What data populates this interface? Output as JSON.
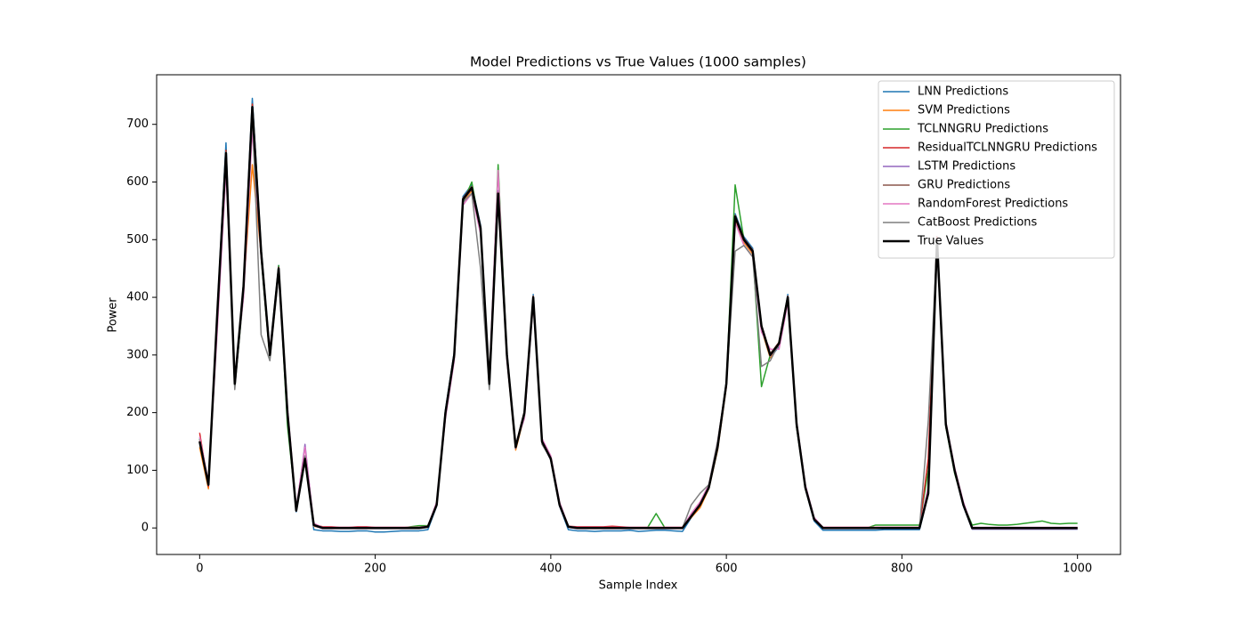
{
  "chart_data": {
    "type": "line",
    "title": "Model Predictions vs True Values (1000 samples)",
    "x_label": "Sample Index",
    "y_label": "Power",
    "xlim": [
      -49,
      1049
    ],
    "ylim": [
      -46,
      786
    ],
    "xticks": [
      0,
      200,
      400,
      600,
      800,
      1000
    ],
    "yticks": [
      0,
      100,
      200,
      300,
      400,
      500,
      600,
      700
    ],
    "legend": "upper right",
    "x": [
      0,
      10,
      20,
      30,
      40,
      50,
      60,
      70,
      80,
      90,
      100,
      110,
      120,
      130,
      140,
      150,
      160,
      170,
      180,
      190,
      200,
      210,
      220,
      230,
      240,
      250,
      260,
      270,
      280,
      290,
      300,
      310,
      320,
      330,
      340,
      350,
      360,
      370,
      380,
      390,
      400,
      410,
      420,
      430,
      440,
      450,
      460,
      470,
      480,
      490,
      500,
      510,
      520,
      530,
      540,
      550,
      560,
      570,
      580,
      590,
      600,
      610,
      620,
      630,
      640,
      650,
      660,
      670,
      680,
      690,
      700,
      710,
      720,
      730,
      740,
      750,
      760,
      770,
      780,
      790,
      800,
      810,
      820,
      830,
      840,
      850,
      860,
      870,
      880,
      890,
      900,
      910,
      920,
      930,
      940,
      950,
      960,
      970,
      980,
      990,
      1000
    ],
    "series": [
      {
        "name": "LNN Predictions",
        "color": "#1f77b4",
        "values": [
          155,
          72,
          375,
          668,
          245,
          425,
          745,
          485,
          305,
          455,
          195,
          28,
          125,
          -3,
          -5,
          -5,
          -6,
          -6,
          -5,
          -5,
          -7,
          -7,
          -6,
          -5,
          -5,
          -5,
          -3,
          38,
          205,
          305,
          575,
          595,
          525,
          245,
          585,
          305,
          138,
          198,
          405,
          148,
          118,
          38,
          -3,
          -5,
          -5,
          -6,
          -5,
          -5,
          -5,
          -4,
          -6,
          -5,
          -4,
          -4,
          -5,
          -6,
          18,
          38,
          68,
          138,
          255,
          545,
          505,
          485,
          345,
          295,
          315,
          405,
          178,
          68,
          12,
          -4,
          -4,
          -4,
          -4,
          -4,
          -4,
          -4,
          -3,
          -3,
          -3,
          -3,
          -3,
          58,
          505,
          178,
          98,
          38,
          -2,
          -2,
          -2,
          -2,
          -2,
          -2,
          -2,
          -2,
          -2,
          -2,
          -2,
          -2,
          -2
        ]
      },
      {
        "name": "SVM Predictions",
        "color": "#ff7f0e",
        "values": [
          140,
          68,
          365,
          640,
          255,
          415,
          630,
          475,
          295,
          445,
          205,
          32,
          118,
          3,
          0,
          0,
          0,
          0,
          0,
          0,
          0,
          0,
          0,
          0,
          0,
          0,
          2,
          42,
          195,
          295,
          565,
          585,
          515,
          250,
          575,
          295,
          135,
          195,
          395,
          150,
          118,
          40,
          2,
          0,
          0,
          0,
          0,
          0,
          0,
          0,
          0,
          0,
          0,
          0,
          0,
          0,
          18,
          35,
          68,
          135,
          245,
          535,
          495,
          475,
          345,
          295,
          318,
          395,
          182,
          68,
          14,
          0,
          0,
          0,
          0,
          0,
          0,
          0,
          0,
          0,
          0,
          0,
          0,
          58,
          495,
          178,
          100,
          40,
          0,
          0,
          0,
          0,
          0,
          0,
          0,
          0,
          0,
          0,
          0,
          0,
          0
        ]
      },
      {
        "name": "TCLNNGRU Predictions",
        "color": "#2ca02c",
        "values": [
          155,
          78,
          372,
          655,
          245,
          405,
          735,
          470,
          295,
          455,
          178,
          35,
          115,
          8,
          0,
          0,
          0,
          0,
          0,
          0,
          0,
          0,
          0,
          0,
          2,
          4,
          4,
          42,
          195,
          295,
          565,
          600,
          515,
          245,
          630,
          295,
          140,
          195,
          395,
          150,
          118,
          42,
          3,
          0,
          0,
          0,
          0,
          0,
          0,
          0,
          0,
          0,
          25,
          0,
          0,
          0,
          22,
          42,
          70,
          142,
          250,
          595,
          500,
          480,
          245,
          300,
          320,
          400,
          175,
          70,
          15,
          0,
          0,
          0,
          0,
          0,
          0,
          5,
          5,
          5,
          5,
          5,
          5,
          100,
          495,
          175,
          95,
          42,
          5,
          8,
          6,
          5,
          5,
          6,
          8,
          10,
          12,
          8,
          7,
          8,
          8
        ]
      },
      {
        "name": "ResidualTCLNNGRU Predictions",
        "color": "#d62728",
        "values": [
          165,
          72,
          372,
          655,
          252,
          422,
          735,
          482,
          302,
          452,
          202,
          32,
          122,
          6,
          2,
          2,
          1,
          1,
          2,
          2,
          1,
          1,
          1,
          1,
          1,
          1,
          3,
          40,
          202,
          302,
          572,
          592,
          522,
          252,
          582,
          302,
          142,
          202,
          402,
          152,
          122,
          42,
          3,
          2,
          2,
          2,
          2,
          3,
          2,
          1,
          1,
          1,
          1,
          1,
          1,
          1,
          20,
          42,
          72,
          145,
          252,
          542,
          502,
          482,
          352,
          302,
          322,
          402,
          182,
          72,
          16,
          1,
          1,
          1,
          1,
          1,
          1,
          1,
          1,
          1,
          1,
          1,
          1,
          120,
          505,
          182,
          102,
          42,
          0,
          0,
          0,
          0,
          0,
          0,
          0,
          0,
          0,
          0,
          0,
          0,
          0
        ]
      },
      {
        "name": "LSTM Predictions",
        "color": "#9467bd",
        "values": [
          148,
          74,
          368,
          648,
          248,
          418,
          725,
          478,
          298,
          448,
          198,
          29,
          145,
          4,
          -1,
          -1,
          -1,
          -1,
          -1,
          -1,
          -1,
          -1,
          -1,
          -1,
          -1,
          -1,
          1,
          38,
          198,
          298,
          568,
          588,
          518,
          248,
          578,
          298,
          138,
          198,
          398,
          148,
          118,
          38,
          1,
          -1,
          -1,
          -1,
          -1,
          -1,
          -1,
          -1,
          -1,
          -1,
          -1,
          -1,
          -1,
          -1,
          19,
          39,
          69,
          139,
          248,
          538,
          498,
          478,
          348,
          298,
          318,
          398,
          178,
          69,
          14,
          -1,
          -1,
          -1,
          -1,
          -1,
          -1,
          -1,
          -1,
          -1,
          -1,
          -1,
          -1,
          60,
          498,
          178,
          98,
          39,
          -2,
          -2,
          -2,
          -2,
          -2,
          -2,
          -2,
          -2,
          -2,
          -2,
          -2,
          -2,
          -2
        ]
      },
      {
        "name": "GRU Predictions",
        "color": "#8c564b",
        "values": [
          152,
          76,
          372,
          652,
          252,
          422,
          728,
          482,
          302,
          452,
          202,
          31,
          122,
          5,
          0,
          0,
          0,
          0,
          0,
          0,
          0,
          0,
          0,
          0,
          0,
          0,
          2,
          41,
          202,
          302,
          572,
          592,
          522,
          252,
          582,
          302,
          142,
          202,
          402,
          152,
          122,
          41,
          2,
          0,
          0,
          0,
          0,
          0,
          0,
          0,
          0,
          0,
          0,
          0,
          0,
          0,
          21,
          41,
          71,
          141,
          252,
          542,
          502,
          482,
          352,
          302,
          322,
          402,
          182,
          71,
          16,
          0,
          0,
          0,
          0,
          0,
          0,
          0,
          0,
          0,
          0,
          0,
          0,
          61,
          502,
          182,
          102,
          41,
          -1,
          -1,
          -1,
          -1,
          -1,
          -1,
          -1,
          -1,
          -1,
          -1,
          -1,
          -1,
          -1
        ]
      },
      {
        "name": "RandomForest Predictions",
        "color": "#e377c2",
        "values": [
          158,
          80,
          340,
          620,
          260,
          400,
          690,
          470,
          310,
          440,
          210,
          35,
          140,
          8,
          1,
          1,
          1,
          1,
          1,
          1,
          1,
          1,
          1,
          1,
          1,
          1,
          3,
          45,
          190,
          290,
          560,
          580,
          510,
          260,
          620,
          290,
          145,
          190,
          390,
          155,
          125,
          45,
          3,
          1,
          1,
          1,
          1,
          1,
          1,
          1,
          1,
          1,
          1,
          1,
          1,
          1,
          25,
          45,
          75,
          150,
          245,
          530,
          490,
          470,
          340,
          310,
          310,
          390,
          185,
          75,
          18,
          1,
          1,
          1,
          1,
          1,
          1,
          1,
          1,
          1,
          1,
          1,
          1,
          70,
          490,
          185,
          105,
          45,
          1,
          1,
          1,
          1,
          1,
          1,
          1,
          1,
          1,
          1,
          1,
          1,
          1
        ]
      },
      {
        "name": "CatBoost Predictions",
        "color": "#7f7f7f",
        "values": [
          150,
          78,
          360,
          640,
          240,
          410,
          720,
          335,
          290,
          440,
          195,
          35,
          125,
          6,
          0,
          0,
          0,
          0,
          0,
          0,
          0,
          0,
          0,
          0,
          0,
          0,
          2,
          42,
          195,
          295,
          565,
          580,
          450,
          240,
          575,
          295,
          140,
          195,
          395,
          145,
          120,
          42,
          2,
          0,
          0,
          0,
          0,
          0,
          0,
          0,
          0,
          0,
          0,
          0,
          0,
          0,
          40,
          60,
          75,
          150,
          250,
          480,
          490,
          470,
          280,
          290,
          320,
          395,
          175,
          72,
          15,
          0,
          0,
          0,
          0,
          0,
          0,
          0,
          0,
          0,
          0,
          0,
          0,
          185,
          495,
          175,
          100,
          40,
          0,
          0,
          0,
          0,
          0,
          0,
          0,
          0,
          0,
          0,
          0,
          0,
          0
        ]
      },
      {
        "name": "True Values",
        "color": "#000000",
        "values": [
          150,
          75,
          370,
          650,
          250,
          420,
          730,
          480,
          300,
          450,
          200,
          30,
          120,
          5,
          0,
          0,
          0,
          0,
          0,
          0,
          0,
          0,
          0,
          0,
          0,
          0,
          2,
          40,
          200,
          300,
          570,
          590,
          520,
          250,
          580,
          300,
          140,
          200,
          400,
          150,
          120,
          40,
          2,
          0,
          0,
          0,
          0,
          0,
          0,
          0,
          0,
          0,
          0,
          0,
          0,
          0,
          20,
          40,
          70,
          140,
          250,
          540,
          500,
          480,
          350,
          300,
          320,
          400,
          180,
          70,
          15,
          0,
          0,
          0,
          0,
          0,
          0,
          0,
          0,
          0,
          0,
          0,
          0,
          60,
          500,
          180,
          100,
          40,
          0,
          0,
          0,
          0,
          0,
          0,
          0,
          0,
          0,
          0,
          0,
          0,
          0
        ]
      }
    ]
  }
}
